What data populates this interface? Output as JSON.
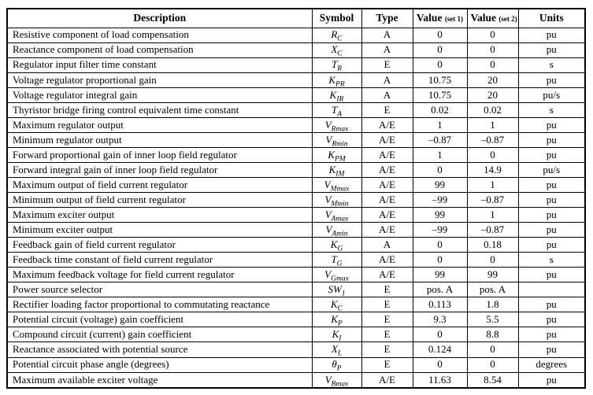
{
  "page": {
    "background_color": "#ffffff",
    "border_color": "#000000",
    "text_color": "#000000"
  },
  "table": {
    "headers": {
      "description": "Description",
      "symbol": "Symbol",
      "type": "Type",
      "value1_label": "Value",
      "value1_note": "(set 1)",
      "value2_label": "Value",
      "value2_note": "(set 2)",
      "units": "Units"
    },
    "rows": [
      {
        "description": "Resistive component of load compensation",
        "symbol": {
          "base": "R",
          "sub": "C"
        },
        "type": "A",
        "value_set1": "0",
        "value_set2": "0",
        "units": "pu"
      },
      {
        "description": "Reactance component of load compensation",
        "symbol": {
          "base": "X",
          "sub": "C"
        },
        "type": "A",
        "value_set1": "0",
        "value_set2": "0",
        "units": "pu"
      },
      {
        "description": "Regulator input filter time constant",
        "symbol": {
          "base": "T",
          "sub": "R"
        },
        "type": "E",
        "value_set1": "0",
        "value_set2": "0",
        "units": "s"
      },
      {
        "description": "Voltage regulator proportional gain",
        "symbol": {
          "base": "K",
          "sub": "PR"
        },
        "type": "A",
        "value_set1": "10.75",
        "value_set2": "20",
        "units": "pu"
      },
      {
        "description": "Voltage regulator integral gain",
        "symbol": {
          "base": "K",
          "sub": "IR"
        },
        "type": "A",
        "value_set1": "10.75",
        "value_set2": "20",
        "units": "pu/s"
      },
      {
        "description": "Thyristor bridge firing control equivalent time constant",
        "symbol": {
          "base": "T",
          "sub": "A"
        },
        "type": "E",
        "value_set1": "0.02",
        "value_set2": "0.02",
        "units": "s"
      },
      {
        "description": "Maximum regulator output",
        "symbol": {
          "base": "V",
          "sub": "Rmax"
        },
        "type": "A/E",
        "value_set1": "1",
        "value_set2": "1",
        "units": "pu"
      },
      {
        "description": "Minimum regulator output",
        "symbol": {
          "base": "V",
          "sub": "Rmin"
        },
        "type": "A/E",
        "value_set1": "–0.87",
        "value_set2": "–0.87",
        "units": "pu"
      },
      {
        "description": "Forward proportional gain of inner loop field regulator",
        "symbol": {
          "base": "K",
          "sub": "PM"
        },
        "type": "A/E",
        "value_set1": "1",
        "value_set2": "0",
        "units": "pu"
      },
      {
        "description": "Forward integral gain of inner loop field regulator",
        "symbol": {
          "base": "K",
          "sub": "IM"
        },
        "type": "A/E",
        "value_set1": "0",
        "value_set2": "14.9",
        "units": "pu/s"
      },
      {
        "description": "Maximum output of field current regulator",
        "symbol": {
          "base": "V",
          "sub": "Mmax"
        },
        "type": "A/E",
        "value_set1": "99",
        "value_set2": "1",
        "units": "pu"
      },
      {
        "description": "Minimum output of field current regulator",
        "symbol": {
          "base": "V",
          "sub": "Mmin"
        },
        "type": "A/E",
        "value_set1": "–99",
        "value_set2": "–0.87",
        "units": "pu"
      },
      {
        "description": "Maximum exciter output",
        "symbol": {
          "base": "V",
          "sub": "Amax"
        },
        "type": "A/E",
        "value_set1": "99",
        "value_set2": "1",
        "units": "pu"
      },
      {
        "description": "Minimum exciter output",
        "symbol": {
          "base": "V",
          "sub": "Amin"
        },
        "type": "A/E",
        "value_set1": "–99",
        "value_set2": "–0.87",
        "units": "pu"
      },
      {
        "description": "Feedback gain of field current regulator",
        "symbol": {
          "base": "K",
          "sub": "G"
        },
        "type": "A",
        "value_set1": "0",
        "value_set2": "0.18",
        "units": "pu"
      },
      {
        "description": "Feedback time constant of field current regulator",
        "symbol": {
          "base": "T",
          "sub": "G"
        },
        "type": "A/E",
        "value_set1": "0",
        "value_set2": "0",
        "units": "s"
      },
      {
        "description": "Maximum feedback voltage for field current regulator",
        "symbol": {
          "base": "V",
          "sub": "Gmax"
        },
        "type": "A/E",
        "value_set1": "99",
        "value_set2": "99",
        "units": "pu"
      },
      {
        "description": "Power source selector",
        "symbol": {
          "base": "SW",
          "sub": "1"
        },
        "type": "E",
        "value_set1": "pos. A",
        "value_set2": "pos. A",
        "units": ""
      },
      {
        "description": "Rectifier loading factor proportional to commutating reactance",
        "symbol": {
          "base": "K",
          "sub": "C"
        },
        "type": "E",
        "value_set1": "0.113",
        "value_set2": "1.8",
        "units": "pu"
      },
      {
        "description": "Potential circuit (voltage) gain coefficient",
        "symbol": {
          "base": "K",
          "sub": "P"
        },
        "type": "E",
        "value_set1": "9.3",
        "value_set2": "5.5",
        "units": "pu"
      },
      {
        "description": "Compound circuit (current) gain coefficient",
        "symbol": {
          "base": "K",
          "sub": "I"
        },
        "type": "E",
        "value_set1": "0",
        "value_set2": "8.8",
        "units": "pu"
      },
      {
        "description": "Reactance associated with potential source",
        "symbol": {
          "base": "X",
          "sub": "L"
        },
        "type": "E",
        "value_set1": "0.124",
        "value_set2": "0",
        "units": "pu"
      },
      {
        "description": "Potential circuit phase angle (degrees)",
        "symbol": {
          "base": "θ",
          "sub": "P"
        },
        "type": "E",
        "value_set1": "0",
        "value_set2": "0",
        "units": "degrees"
      },
      {
        "description": "Maximum available exciter voltage",
        "symbol": {
          "base": "V",
          "sub": "Bmax"
        },
        "type": "A/E",
        "value_set1": "11.63",
        "value_set2": "8.54",
        "units": "pu"
      }
    ]
  }
}
